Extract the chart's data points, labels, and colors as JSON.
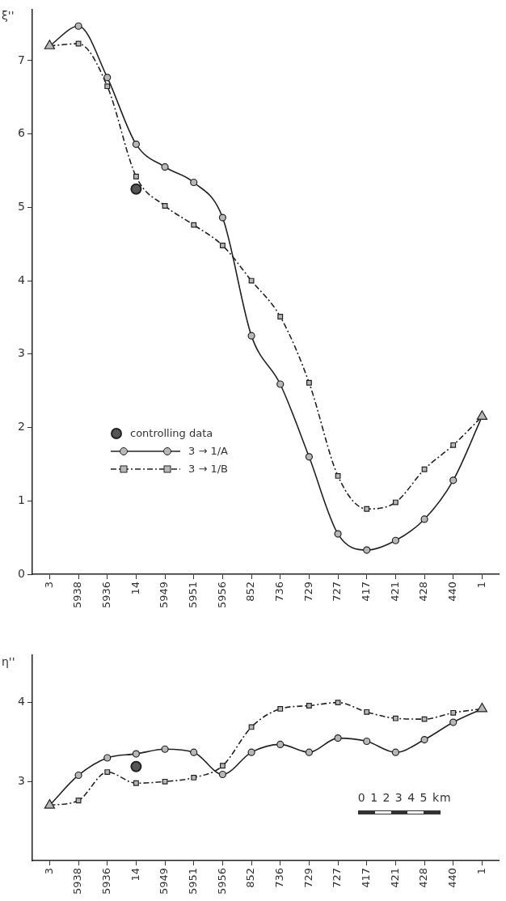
{
  "chart_data": [
    {
      "type": "line",
      "ylabel": "ξ''",
      "ylim": [
        0,
        7.7
      ],
      "yticks": [
        0,
        1,
        2,
        3,
        4,
        5,
        6,
        7
      ],
      "categories": [
        "3",
        "5938",
        "5936",
        "14",
        "5949",
        "5951",
        "5956",
        "852",
        "736",
        "729",
        "727",
        "417",
        "421",
        "428",
        "440",
        "1"
      ],
      "grid": false,
      "legend": "bottom left",
      "series": [
        {
          "type": "scatter",
          "marker": "triangle",
          "color": "#222222",
          "x": [
            "3",
            "1"
          ],
          "values": [
            7.2,
            2.15
          ]
        },
        {
          "type": "scatter",
          "marker": "circle",
          "name": "controlling data",
          "color": "#222222",
          "x": [
            "14"
          ],
          "values": [
            5.25
          ]
        },
        {
          "name": "3 → 1/A",
          "marker": "circle",
          "line_style": "solid",
          "color": "#222222",
          "values": [
            7.2,
            7.47,
            6.77,
            5.86,
            5.55,
            5.34,
            4.86,
            3.25,
            2.59,
            1.6,
            0.55,
            0.33,
            0.46,
            0.75,
            1.28,
            2.15
          ]
        },
        {
          "name": "3 → 1/B",
          "marker": "square",
          "line_style": "dashed",
          "color": "#222222",
          "values": [
            7.2,
            7.23,
            6.65,
            5.42,
            5.02,
            4.76,
            4.48,
            4.0,
            3.51,
            2.61,
            1.34,
            0.89,
            0.98,
            1.43,
            1.76,
            2.15
          ]
        }
      ]
    },
    {
      "type": "line",
      "ylabel": "η''",
      "ylim": [
        2.0,
        4.6
      ],
      "yticks": [
        3,
        4
      ],
      "categories": [
        "3",
        "5938",
        "5936",
        "14",
        "5949",
        "5951",
        "5956",
        "852",
        "736",
        "729",
        "727",
        "417",
        "421",
        "428",
        "440",
        "1"
      ],
      "grid": false,
      "legend": false,
      "annotations": [
        "0 1 2 3 4 5 km"
      ],
      "series": [
        {
          "type": "scatter",
          "marker": "triangle",
          "color": "#222222",
          "x": [
            "3",
            "1"
          ],
          "values": [
            2.7,
            3.92
          ]
        },
        {
          "type": "scatter",
          "marker": "circle",
          "color": "#222222",
          "x": [
            "14"
          ],
          "values": [
            3.19
          ]
        },
        {
          "marker": "circle",
          "line_style": "solid",
          "color": "#222222",
          "values": [
            2.7,
            3.08,
            3.3,
            3.35,
            3.41,
            3.37,
            3.09,
            3.37,
            3.47,
            3.37,
            3.55,
            3.51,
            3.37,
            3.53,
            3.75,
            3.92
          ]
        },
        {
          "marker": "square",
          "line_style": "dashed",
          "color": "#222222",
          "values": [
            2.7,
            2.76,
            3.12,
            2.98,
            3.0,
            3.05,
            3.2,
            3.69,
            3.92,
            3.96,
            4.0,
            3.88,
            3.8,
            3.79,
            3.87,
            3.92
          ]
        }
      ]
    }
  ]
}
